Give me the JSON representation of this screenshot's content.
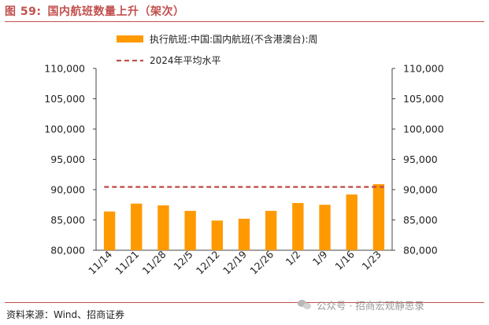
{
  "figure": {
    "title_number": "图 59:",
    "title_text": "国内航班数量上升（架次）",
    "source": "资料来源：Wind、招商证券",
    "watermark": "公众号 · 招商宏观静思录"
  },
  "colors": {
    "bar": "#FF9900",
    "ref_line": "#C0504D",
    "accent": "#C0504D"
  },
  "chart_data": {
    "type": "bar",
    "categories": [
      "11/14",
      "11/21",
      "11/28",
      "12/5",
      "12/12",
      "12/19",
      "12/26",
      "1/2",
      "1/9",
      "1/16",
      "1/23"
    ],
    "series": [
      {
        "name": "执行航班:中国:国内航班(不含港澳台):周",
        "values": [
          86400,
          87700,
          87400,
          86500,
          84900,
          85200,
          86500,
          87800,
          87500,
          89200,
          90900
        ]
      }
    ],
    "reference_line": {
      "name": "2024年平均水平",
      "value": 90450
    },
    "ylim": [
      80000,
      110000
    ],
    "yticks": [
      "80,000",
      "85,000",
      "90,000",
      "95,000",
      "100,000",
      "105,000",
      "110,000"
    ],
    "ytick_values": [
      80000,
      85000,
      90000,
      95000,
      100000,
      105000,
      110000
    ],
    "legend_position": "top",
    "grid": false,
    "secondary_axis": true
  }
}
